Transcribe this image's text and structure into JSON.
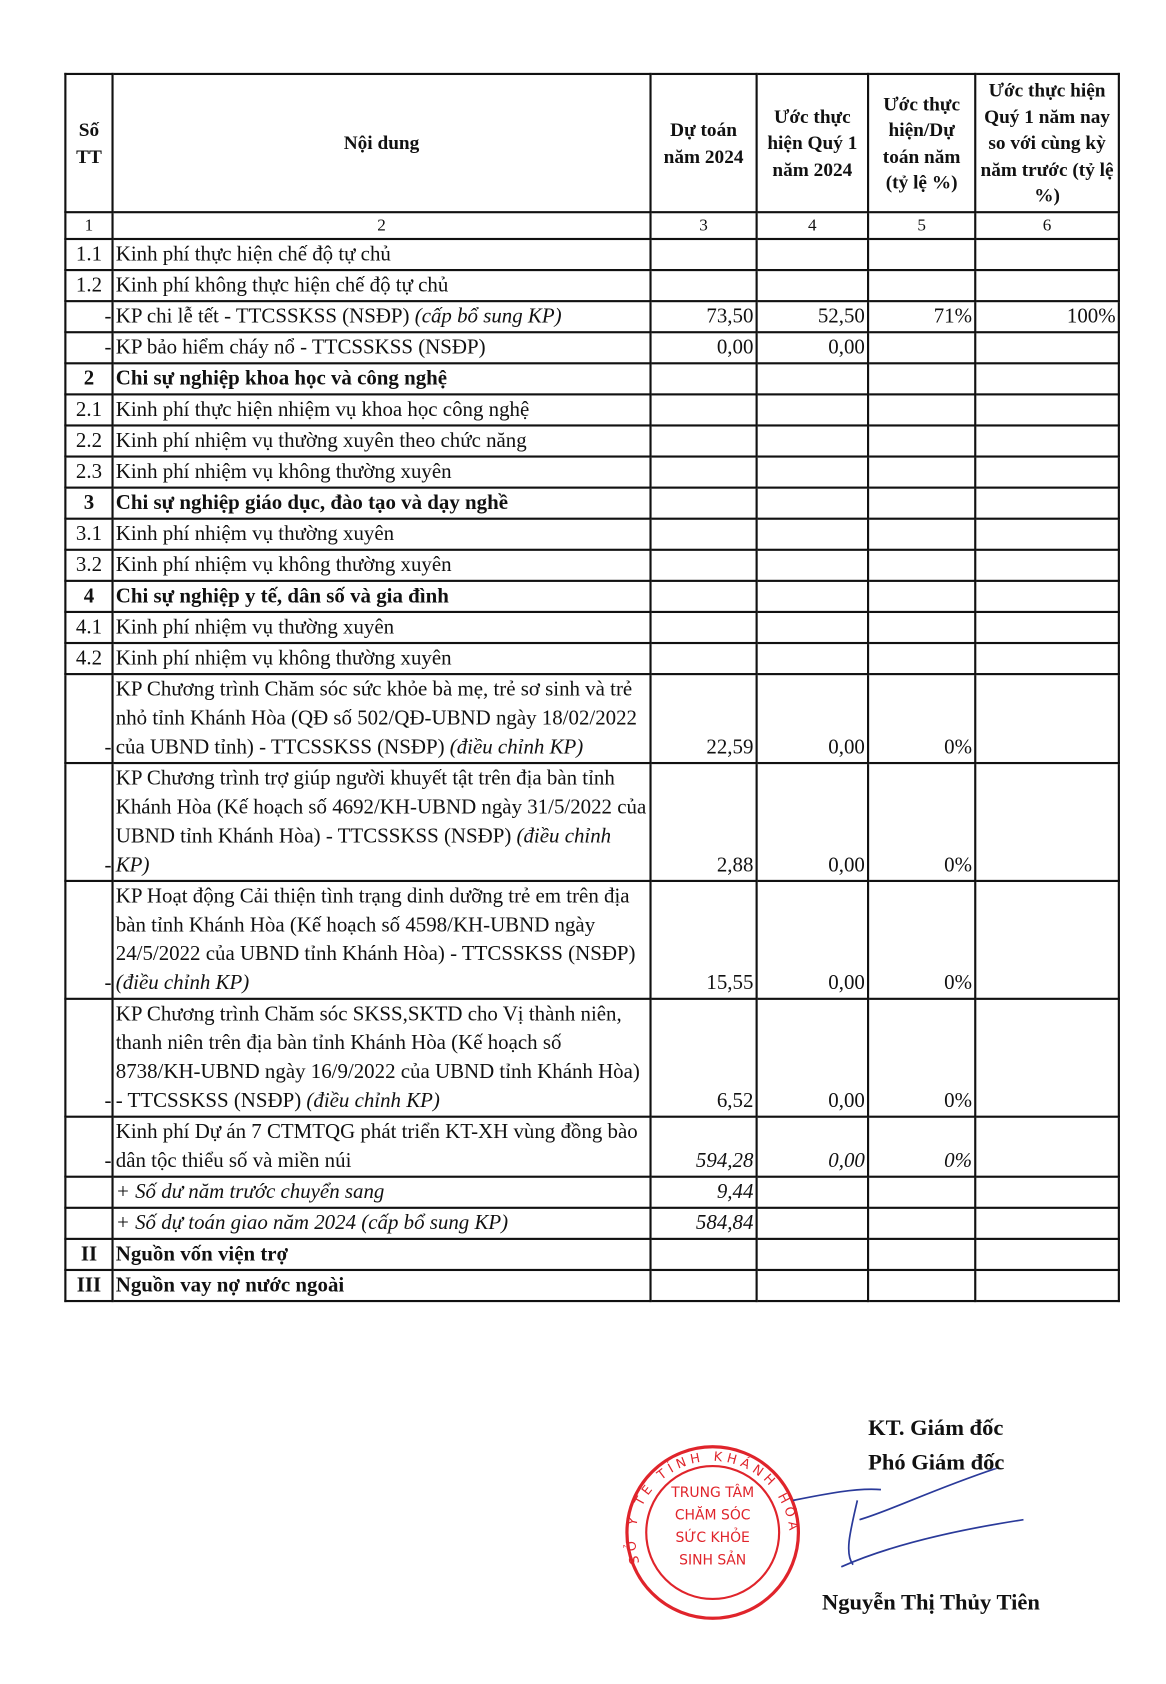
{
  "table": {
    "headers": [
      "Số TT",
      "Nội dung",
      "Dự toán năm 2024",
      "Ước thực hiện Quý 1 năm 2024",
      "Ước thực hiện/Dự toán năm (tỷ lệ %)",
      "Ước thực hiện Quý 1 năm nay so với cùng kỳ năm trước (tỷ lệ %)"
    ],
    "column_numbers": [
      "1",
      "2",
      "3",
      "4",
      "5",
      "6"
    ],
    "rows": [
      {
        "stt": "1.1",
        "text": " Kinh phí thực hiện chế độ tự chủ",
        "note": "",
        "c3": "",
        "c4": "",
        "c5": "",
        "c6": ""
      },
      {
        "stt": "1.2",
        "text": "Kinh phí không thực hiện chế độ tự chủ",
        "note": "",
        "c3": "",
        "c4": "",
        "c5": "",
        "c6": ""
      },
      {
        "stt": "-",
        "text": "KP chi lễ tết - TTCSSKSS (NSĐP) ",
        "note": "(cấp bổ sung KP)",
        "c3": "73,50",
        "c4": "52,50",
        "c5": "71%",
        "c6": "100%"
      },
      {
        "stt": "-",
        "text": "KP bảo hiểm cháy nổ - TTCSSKSS (NSĐP)",
        "note": "",
        "c3": "0,00",
        "c4": "0,00",
        "c5": "",
        "c6": ""
      },
      {
        "stt": "2",
        "bold": true,
        "text": "Chi sự nghiệp khoa học và công nghệ",
        "note": "",
        "c3": "",
        "c4": "",
        "c5": "",
        "c6": ""
      },
      {
        "stt": "2.1",
        "text": "Kinh phí thực hiện nhiệm vụ khoa học công nghệ",
        "note": "",
        "c3": "",
        "c4": "",
        "c5": "",
        "c6": ""
      },
      {
        "stt": "2.2",
        "text": "Kinh phí nhiệm vụ thường xuyên theo chức năng",
        "note": "",
        "c3": "",
        "c4": "",
        "c5": "",
        "c6": ""
      },
      {
        "stt": "2.3",
        "text": "Kinh phí nhiệm vụ không thường xuyên",
        "note": "",
        "c3": "",
        "c4": "",
        "c5": "",
        "c6": ""
      },
      {
        "stt": "3",
        "bold": true,
        "text": "Chi sự nghiệp giáo dục, đào tạo và dạy nghề",
        "note": "",
        "c3": "",
        "c4": "",
        "c5": "",
        "c6": ""
      },
      {
        "stt": "3.1",
        "text": "Kinh phí nhiệm vụ thường xuyên",
        "note": "",
        "c3": "",
        "c4": "",
        "c5": "",
        "c6": ""
      },
      {
        "stt": "3.2",
        "text": "Kinh phí nhiệm vụ không thường xuyên",
        "note": "",
        "c3": "",
        "c4": "",
        "c5": "",
        "c6": ""
      },
      {
        "stt": "4",
        "bold": true,
        "text": "Chi sự nghiệp y tế, dân số và gia đình",
        "note": "",
        "c3": "",
        "c4": "",
        "c5": "",
        "c6": ""
      },
      {
        "stt": "4.1",
        "text": "Kinh phí nhiệm vụ thường xuyên",
        "note": "",
        "c3": "",
        "c4": "",
        "c5": "",
        "c6": ""
      },
      {
        "stt": "4.2",
        "text": "Kinh phí nhiệm vụ không thường xuyên",
        "note": "",
        "c3": "",
        "c4": "",
        "c5": "",
        "c6": ""
      },
      {
        "stt": "-",
        "text": "KP Chương trình Chăm sóc sức khỏe bà mẹ, trẻ sơ sinh và trẻ nhỏ tỉnh Khánh Hòa (QĐ số 502/QĐ-UBND ngày 18/02/2022 của UBND tỉnh) - TTCSSKSS (NSĐP) ",
        "note": "(điều chỉnh KP)",
        "c3": "22,59",
        "c4": "0,00",
        "c5": "0%",
        "c6": ""
      },
      {
        "stt": "-",
        "text": "KP Chương trình trợ giúp người khuyết tật trên địa bàn tỉnh Khánh Hòa (Kế hoạch số 4692/KH-UBND ngày 31/5/2022 của UBND tỉnh Khánh Hòa) - TTCSSKSS (NSĐP) ",
        "note": "(điều chỉnh KP)",
        "c3": "2,88",
        "c4": "0,00",
        "c5": "0%",
        "c6": ""
      },
      {
        "stt": "-",
        "text": "KP Hoạt động Cải thiện tình trạng dinh dưỡng trẻ em trên địa bàn tỉnh Khánh Hòa (Kế hoạch số 4598/KH-UBND ngày 24/5/2022 của UBND tỉnh Khánh Hòa) - TTCSSKSS (NSĐP) ",
        "note": "(điều chỉnh KP)",
        "c3": "15,55",
        "c4": "0,00",
        "c5": "0%",
        "c6": ""
      },
      {
        "stt": "-",
        "text": "KP Chương trình Chăm sóc SKSS,SKTD cho Vị thành niên, thanh niên trên địa bàn tỉnh Khánh Hòa (Kế hoạch số 8738/KH-UBND ngày 16/9/2022 của UBND tỉnh Khánh Hòa) - TTCSSKSS (NSĐP) ",
        "note": "(điều chỉnh KP)",
        "c3": "6,52",
        "c4": "0,00",
        "c5": "0%",
        "c6": ""
      },
      {
        "stt": "-",
        "text": "Kinh phí Dự án 7 CTMTQG phát triển KT-XH vùng đồng bào dân tộc thiểu số và miền núi",
        "note": "",
        "c3": "594,28",
        "c4": "0,00",
        "c5": "0%",
        "c6": "",
        "italic_values": true
      },
      {
        "stt": "",
        "text": "",
        "note": "+ Số dư năm trước chuyển sang",
        "c3": "9,44",
        "c4": "",
        "c5": "",
        "c6": "",
        "italic_values": true
      },
      {
        "stt": "",
        "text": "",
        "note": "+ Số dự toán giao năm 2024 (cấp bổ sung KP)",
        "c3": "584,84",
        "c4": "",
        "c5": "",
        "c6": "",
        "italic_values": true
      },
      {
        "stt": "II",
        "bold": true,
        "text": "Nguồn vốn viện trợ",
        "note": "",
        "c3": "",
        "c4": "",
        "c5": "",
        "c6": ""
      },
      {
        "stt": "III",
        "bold": true,
        "text": "Nguồn vay nợ nước ngoài",
        "note": "",
        "c3": "",
        "c4": "",
        "c5": "",
        "c6": ""
      }
    ]
  },
  "signature": {
    "line1": "KT. Giám đốc",
    "line2": "Phó Giám đốc",
    "name": "Nguyễn Thị Thủy Tiên",
    "stamp_outer": "SỞ Y TẾ TỈNH KHÁNH HÒA",
    "stamp_inner": [
      "TRUNG TÂM",
      "CHĂM SÓC",
      "SỨC KHỎE",
      "SINH SẢN"
    ],
    "stamp_color": "#e0242b",
    "ink_color": "#2a3a9a"
  }
}
